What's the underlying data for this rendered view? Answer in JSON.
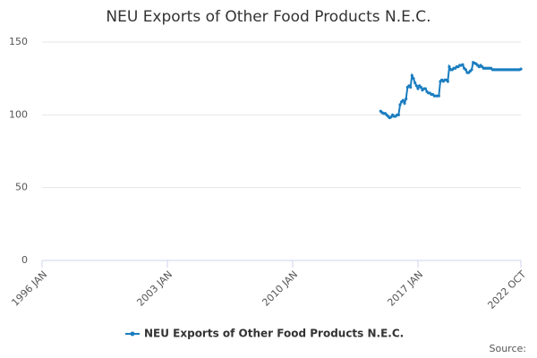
{
  "chart_data": {
    "type": "line",
    "title": "NEU Exports of Other Food Products N.E.C.",
    "x": [
      "2014-12",
      "2015-01",
      "2015-02",
      "2015-03",
      "2015-04",
      "2015-05",
      "2015-06",
      "2015-07",
      "2015-08",
      "2015-09",
      "2015-10",
      "2015-11",
      "2015-12",
      "2016-01",
      "2016-02",
      "2016-03",
      "2016-04",
      "2016-05",
      "2016-06",
      "2016-07",
      "2016-08",
      "2016-09",
      "2016-10",
      "2016-11",
      "2016-12",
      "2017-01",
      "2017-02",
      "2017-03",
      "2017-04",
      "2017-05",
      "2017-06",
      "2017-07",
      "2017-08",
      "2017-09",
      "2017-10",
      "2017-11",
      "2017-12",
      "2018-01",
      "2018-02",
      "2018-03",
      "2018-04",
      "2018-05",
      "2018-06",
      "2018-07",
      "2018-08",
      "2018-09",
      "2018-10",
      "2018-11",
      "2018-12",
      "2019-01",
      "2019-02",
      "2019-03",
      "2019-04",
      "2019-05",
      "2019-06",
      "2019-07",
      "2019-08",
      "2019-09",
      "2019-10",
      "2019-11",
      "2019-12",
      "2020-01",
      "2020-02",
      "2020-03",
      "2020-04",
      "2020-05",
      "2020-06",
      "2020-07",
      "2020-08",
      "2020-09",
      "2020-10",
      "2020-11",
      "2020-12",
      "2021-01",
      "2021-02",
      "2021-03",
      "2021-04",
      "2021-05",
      "2021-06",
      "2021-07",
      "2021-08",
      "2021-09",
      "2021-10",
      "2021-11",
      "2021-12",
      "2022-01",
      "2022-02",
      "2022-03",
      "2022-04",
      "2022-05",
      "2022-06",
      "2022-07",
      "2022-08",
      "2022-09",
      "2022-10"
    ],
    "series": [
      {
        "name": "NEU Exports of Other Food Products N.E.C.",
        "color": "#1a7dc0",
        "values": [
          102.5,
          101.5,
          101,
          101,
          100,
          99,
          98,
          98.5,
          100,
          99,
          99,
          100,
          100,
          107,
          109,
          110,
          108,
          111,
          119,
          120,
          119,
          127,
          125,
          122,
          120,
          118,
          120,
          119,
          117,
          118,
          118,
          116,
          115,
          115,
          114,
          114,
          113,
          113,
          113,
          113,
          123,
          124,
          123,
          124,
          124,
          123,
          133,
          131,
          131,
          132,
          132,
          133,
          133,
          134,
          134,
          134.5,
          132,
          131,
          129,
          129,
          130,
          131,
          136,
          135.5,
          135,
          134,
          133,
          134,
          133,
          132,
          132,
          132,
          132,
          132,
          132,
          131,
          131,
          131,
          131,
          131,
          131,
          131,
          131,
          131,
          131,
          131,
          131,
          131,
          131,
          131,
          131,
          131,
          131,
          131,
          131.5
        ]
      }
    ],
    "xlim": [
      "1996-01",
      "2022-10"
    ],
    "xticks": [
      {
        "value": "1996-01",
        "label": "1996 JAN"
      },
      {
        "value": "2003-01",
        "label": "2003 JAN"
      },
      {
        "value": "2010-01",
        "label": "2010 JAN"
      },
      {
        "value": "2017-01",
        "label": "2017 JAN"
      },
      {
        "value": "2022-10",
        "label": "2022 OCT"
      }
    ],
    "ylim": [
      0,
      150
    ],
    "yticks": [
      0,
      50,
      100,
      150
    ],
    "grid": true,
    "legend": "bottom",
    "source": "Source:"
  }
}
